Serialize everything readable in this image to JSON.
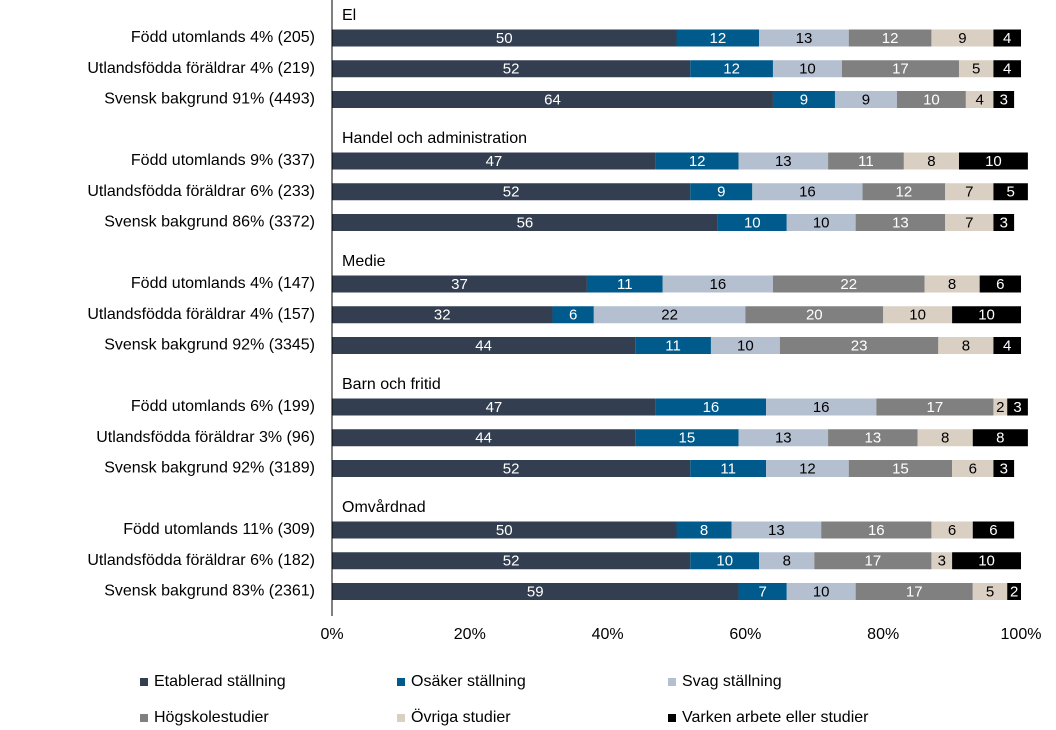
{
  "chart_data": {
    "type": "stacked-bar",
    "groups": [
      "El",
      "Handel och administration",
      "Medie",
      "Barn och fritid",
      "Omvårdnad"
    ],
    "categories": [
      "Född utomlands 4% (205)",
      "Utlandsfödda föräldrar 4% (219)",
      "Svensk bakgrund 91% (4493)",
      "Född utomlands 9% (337)",
      "Utlandsfödda föräldrar 6% (233)",
      "Svensk bakgrund 86% (3372)",
      "Född utomlands 4% (147)",
      "Utlandsfödda föräldrar 4% (157)",
      "Svensk bakgrund 92% (3345)",
      "Född utomlands 6% (199)",
      "Utlandsfödda föräldrar 3% (96)",
      "Svensk bakgrund 92% (3189)",
      "Född utomlands 11% (309)",
      "Utlandsfödda föräldrar 6% (182)",
      "Svensk bakgrund 83% (2361)"
    ],
    "series": [
      {
        "name": "Etablerad ställning",
        "color": "#333f50",
        "values": [
          50,
          52,
          64,
          47,
          52,
          56,
          37,
          32,
          44,
          47,
          44,
          52,
          50,
          52,
          59
        ]
      },
      {
        "name": "Osäker ställning",
        "color": "#005a8c",
        "values": [
          12,
          12,
          9,
          12,
          9,
          10,
          11,
          6,
          11,
          16,
          15,
          11,
          8,
          10,
          7
        ]
      },
      {
        "name": "Svag ställning",
        "color": "#b4bfd0",
        "values": [
          13,
          10,
          9,
          13,
          16,
          10,
          16,
          22,
          10,
          16,
          13,
          12,
          13,
          8,
          10
        ]
      },
      {
        "name": "Högskolestudier",
        "color": "#808080",
        "values": [
          12,
          17,
          10,
          11,
          12,
          13,
          22,
          20,
          23,
          17,
          13,
          15,
          16,
          17,
          17
        ]
      },
      {
        "name": "Övriga studier",
        "color": "#d9cfc3",
        "values": [
          9,
          5,
          4,
          8,
          7,
          7,
          8,
          10,
          8,
          2,
          8,
          6,
          6,
          3,
          5
        ]
      },
      {
        "name": "Varken arbete eller studier",
        "color": "#000000",
        "values": [
          4,
          4,
          3,
          10,
          5,
          3,
          6,
          10,
          4,
          3,
          8,
          3,
          6,
          10,
          2
        ]
      }
    ],
    "xlim": [
      0,
      100
    ],
    "xticks": [
      {
        "value": 0,
        "label": "0%"
      },
      {
        "value": 20,
        "label": "20%"
      },
      {
        "value": 40,
        "label": "40%"
      },
      {
        "value": 60,
        "label": "60%"
      },
      {
        "value": 80,
        "label": "80%"
      },
      {
        "value": 100,
        "label": "100%"
      }
    ]
  }
}
